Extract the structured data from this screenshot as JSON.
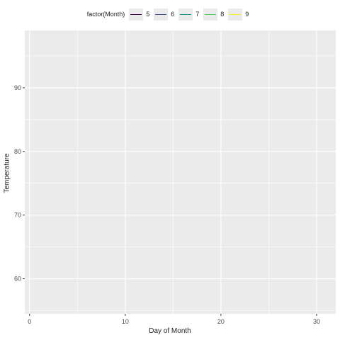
{
  "chart_data": {
    "type": "line",
    "title": "",
    "xlabel": "Day of Month",
    "ylabel": "Temperature",
    "xlim": [
      -0.5,
      32
    ],
    "ylim": [
      54.5,
      99
    ],
    "x_ticks": [
      0,
      10,
      20,
      30
    ],
    "y_ticks": [
      60,
      70,
      80,
      90
    ],
    "grid": true,
    "legend_position": "top",
    "legend_title": "factor(Month)",
    "series": [
      {
        "name": "5",
        "color": "#440154",
        "x": [],
        "y": []
      },
      {
        "name": "6",
        "color": "#3b528b",
        "x": [],
        "y": []
      },
      {
        "name": "7",
        "color": "#21918c",
        "x": [],
        "y": []
      },
      {
        "name": "8",
        "color": "#5ec962",
        "x": [],
        "y": []
      },
      {
        "name": "9",
        "color": "#fde725",
        "x": [],
        "y": []
      }
    ]
  }
}
